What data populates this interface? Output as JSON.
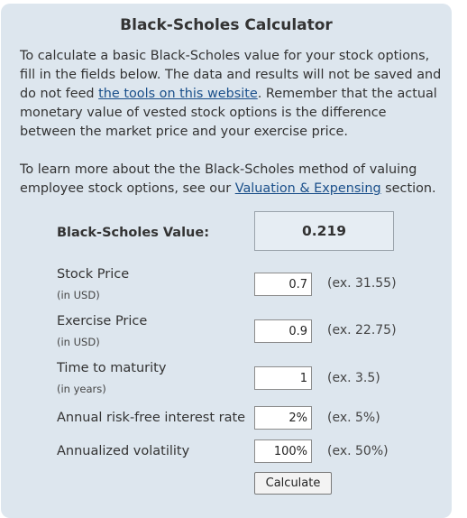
{
  "title": "Black-Scholes Calculator",
  "intro": {
    "p1_before": "To calculate a basic Black-Scholes value for your stock options, fill in the fields below. The data and results will not be saved and do not feed ",
    "p1_link": "the tools on this website",
    "p1_after": ". Remember that the actual monetary value of vested stock options is the difference between the market price and your exercise price.",
    "p2_before": "To learn more about the the Black-Scholes method of valuing employee stock options, see our ",
    "p2_link": "Valuation & Expensing",
    "p2_after": " section."
  },
  "result": {
    "label": "Black-Scholes Value:",
    "value": "0.219"
  },
  "fields": {
    "stock_price": {
      "label": "Stock Price",
      "sublabel": "(in USD)",
      "value": "0.7",
      "example": "(ex. 31.55)"
    },
    "exercise_price": {
      "label": "Exercise Price",
      "sublabel": "(in USD)",
      "value": "0.9",
      "example": "(ex. 22.75)"
    },
    "time_to_maturity": {
      "label": "Time to maturity",
      "sublabel": "(in years)",
      "value": "1",
      "example": "(ex. 3.5)"
    },
    "interest_rate": {
      "label": "Annual risk-free interest rate",
      "value": "2%",
      "example": "(ex. 5%)"
    },
    "volatility": {
      "label": "Annualized volatility",
      "value": "100%",
      "example": "(ex. 50%)"
    }
  },
  "calculate_label": "Calculate"
}
